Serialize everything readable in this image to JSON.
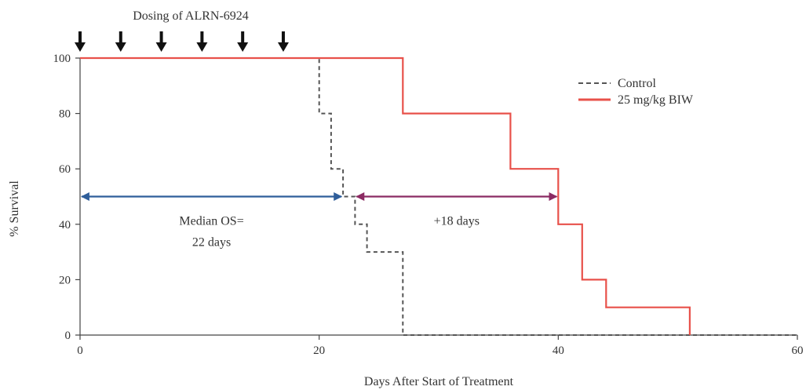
{
  "chart_data": {
    "type": "line",
    "subtype": "kaplan-meier step",
    "xlabel": "Days After Start of Treatment",
    "ylabel": "% Survival",
    "xlim": [
      0,
      60
    ],
    "ylim": [
      0,
      100
    ],
    "xticks": [
      0,
      20,
      40,
      60
    ],
    "yticks": [
      0,
      20,
      40,
      60,
      80,
      100
    ],
    "grid": false,
    "legend_position": "top-right",
    "series": [
      {
        "name": "Control",
        "color": "#555555",
        "style": "dashed",
        "x": [
          0,
          20,
          20,
          21,
          21,
          22,
          22,
          23,
          23,
          24,
          24,
          27,
          27,
          60
        ],
        "y": [
          100,
          100,
          80,
          80,
          60,
          60,
          50,
          50,
          40,
          40,
          30,
          30,
          0,
          0
        ]
      },
      {
        "name": "25 mg/kg BIW",
        "color": "#e8514a",
        "style": "solid",
        "x": [
          0,
          27,
          27,
          36,
          36,
          40,
          40,
          42,
          42,
          44,
          44,
          51,
          51
        ],
        "y": [
          100,
          100,
          80,
          80,
          60,
          60,
          40,
          40,
          20,
          20,
          10,
          10,
          0
        ]
      }
    ],
    "dosing": {
      "label": "Dosing of ALRN-6924",
      "days": [
        0,
        3.4,
        6.8,
        10.2,
        13.6,
        17
      ]
    },
    "annotations": [
      {
        "name": "median-os",
        "lines": [
          "Median OS=",
          "22 days"
        ],
        "arrow_from": 0,
        "arrow_to": 22,
        "y": 50,
        "color": "#2f5e9a"
      },
      {
        "name": "plus-18-days",
        "lines": [
          "+18 days"
        ],
        "arrow_from": 23,
        "arrow_to": 40,
        "y": 50,
        "color": "#8b2a63"
      }
    ]
  }
}
